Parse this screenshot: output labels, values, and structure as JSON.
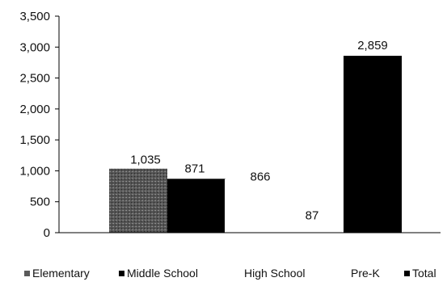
{
  "chart_data": {
    "type": "bar",
    "categories": [
      "Elementary",
      "Middle School",
      "High School",
      "Pre-K",
      "Total"
    ],
    "values": [
      1035,
      871,
      866,
      87,
      2859
    ],
    "data_labels": [
      "1,035",
      "871",
      "866",
      "87",
      "2,859"
    ],
    "ylim": [
      0,
      3500
    ],
    "yticks": [
      0,
      500,
      1000,
      1500,
      2000,
      2500,
      3000,
      3500
    ],
    "ytick_labels": [
      "0",
      "500",
      "1,000",
      "1,500",
      "2,000",
      "2,500",
      "3,000",
      "3,500"
    ],
    "legend": [
      "Elementary",
      "Middle School",
      "High School",
      "Pre-K",
      "Total"
    ],
    "legend_position": "bottom",
    "grid": false,
    "title": "",
    "xlabel": "",
    "ylabel": "",
    "colors": [
      "#5a5a5a",
      "#000000",
      "#ffffff",
      "#ffffff",
      "#000000"
    ]
  }
}
